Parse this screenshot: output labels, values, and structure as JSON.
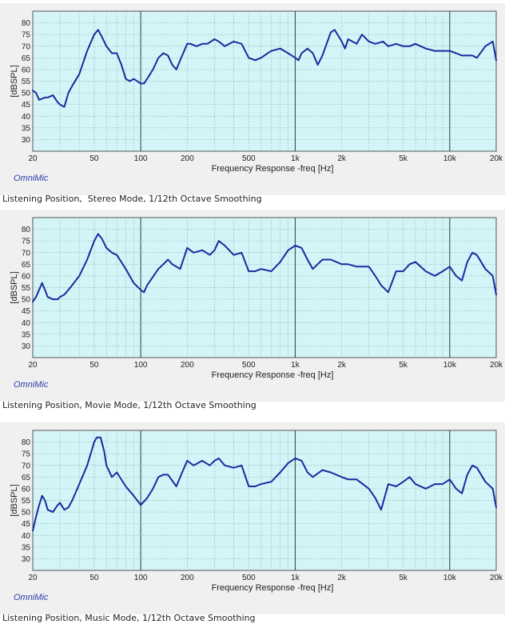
{
  "brand": "OmniMic",
  "colors": {
    "plot_bg": "#d4f5f7",
    "grid": "#7a9a9a",
    "curve": "#1a2aa0",
    "panel_bg": "#f0f0f0"
  },
  "chart_data": [
    {
      "type": "line",
      "caption": "Listening Position,  Stereo Mode, 1/12th Octave Smoothing",
      "xlabel": "Frequency Response -freq [Hz]",
      "ylabel": "[dBSPL]",
      "xscale": "log",
      "xlim": [
        20,
        20000
      ],
      "ylim": [
        25,
        85
      ],
      "x_ticks": [
        "20",
        "50",
        "100",
        "200",
        "500",
        "1k",
        "2k",
        "5k",
        "10k",
        "20k"
      ],
      "y_ticks": [
        "30",
        "35",
        "40",
        "45",
        "50",
        "55",
        "60",
        "65",
        "70",
        "75",
        "80"
      ],
      "grid": true,
      "series": [
        {
          "x": [
            20,
            21,
            22,
            24,
            25,
            27,
            29,
            30,
            32,
            34,
            36,
            40,
            45,
            50,
            53,
            56,
            60,
            65,
            70,
            75,
            80,
            85,
            90,
            100,
            105,
            110,
            120,
            130,
            140,
            150,
            160,
            170,
            180,
            200,
            210,
            230,
            250,
            270,
            300,
            320,
            350,
            400,
            450,
            500,
            550,
            600,
            700,
            800,
            900,
            1000,
            1050,
            1100,
            1200,
            1300,
            1400,
            1500,
            1700,
            1800,
            2000,
            2100,
            2200,
            2500,
            2700,
            3000,
            3300,
            3700,
            4000,
            4500,
            5000,
            5500,
            6000,
            7000,
            8000,
            9000,
            10000,
            11000,
            12000,
            13000,
            14000,
            15000,
            17000,
            19000,
            20000
          ],
          "y": [
            51,
            50,
            47,
            48,
            48,
            49,
            46,
            45,
            44,
            50,
            53,
            58,
            68,
            75,
            77,
            74,
            70,
            67,
            67,
            62,
            56,
            55,
            56,
            54,
            54,
            56,
            60,
            65,
            67,
            66,
            62,
            60,
            64,
            71,
            71,
            70,
            71,
            71,
            73,
            72,
            70,
            72,
            71,
            65,
            64,
            65,
            68,
            69,
            67,
            65,
            64,
            67,
            69,
            67,
            62,
            66,
            76,
            77,
            72,
            69,
            73,
            71,
            75,
            72,
            71,
            72,
            70,
            71,
            70,
            70,
            71,
            69,
            68,
            68,
            68,
            67,
            66,
            66,
            66,
            65,
            70,
            72,
            64
          ]
        }
      ]
    },
    {
      "type": "line",
      "caption": "Listening Position, Movie Mode, 1/12th Octave Smoothing",
      "xlabel": "Frequency Response -freq [Hz]",
      "ylabel": "[dBSPL]",
      "xscale": "log",
      "xlim": [
        20,
        20000
      ],
      "ylim": [
        25,
        85
      ],
      "x_ticks": [
        "20",
        "50",
        "100",
        "200",
        "500",
        "1k",
        "2k",
        "5k",
        "10k",
        "20k"
      ],
      "y_ticks": [
        "30",
        "35",
        "40",
        "45",
        "50",
        "55",
        "60",
        "65",
        "70",
        "75",
        "80"
      ],
      "grid": true,
      "series": [
        {
          "x": [
            20,
            21,
            23,
            24,
            25,
            27,
            29,
            30,
            32,
            35,
            40,
            45,
            50,
            53,
            56,
            60,
            65,
            70,
            80,
            90,
            100,
            105,
            110,
            130,
            140,
            150,
            160,
            180,
            200,
            220,
            250,
            280,
            300,
            320,
            350,
            400,
            450,
            500,
            550,
            600,
            700,
            800,
            900,
            1000,
            1100,
            1200,
            1300,
            1500,
            1700,
            2000,
            2200,
            2500,
            3000,
            3300,
            3600,
            4000,
            4500,
            5000,
            5500,
            6000,
            7000,
            8000,
            9000,
            10000,
            11000,
            12000,
            13000,
            14000,
            15000,
            17000,
            19000,
            20000
          ],
          "y": [
            49,
            51,
            57,
            54,
            51,
            50,
            50,
            51,
            52,
            55,
            60,
            67,
            75,
            78,
            76,
            72,
            70,
            69,
            63,
            57,
            54,
            53,
            56,
            63,
            65,
            67,
            65,
            63,
            72,
            70,
            71,
            69,
            71,
            75,
            73,
            69,
            70,
            62,
            62,
            63,
            62,
            66,
            71,
            73,
            72,
            67,
            63,
            67,
            67,
            65,
            65,
            64,
            64,
            60,
            56,
            53,
            62,
            62,
            65,
            66,
            62,
            60,
            62,
            64,
            60,
            58,
            66,
            70,
            69,
            63,
            60,
            52
          ]
        }
      ]
    },
    {
      "type": "line",
      "caption": "Listening Position, Music Mode, 1/12th Octave Smoothing",
      "xlabel": "Frequency Response -freq [Hz]",
      "ylabel": "[dBSPL]",
      "xscale": "log",
      "xlim": [
        20,
        20000
      ],
      "ylim": [
        25,
        85
      ],
      "x_ticks": [
        "20",
        "50",
        "100",
        "200",
        "500",
        "1k",
        "2k",
        "5k",
        "10k",
        "20k"
      ],
      "y_ticks": [
        "30",
        "35",
        "40",
        "45",
        "50",
        "55",
        "60",
        "65",
        "70",
        "75",
        "80"
      ],
      "grid": true,
      "series": [
        {
          "x": [
            20,
            21,
            22,
            23,
            24,
            25,
            27,
            29,
            30,
            32,
            34,
            36,
            40,
            45,
            50,
            52,
            55,
            58,
            60,
            65,
            70,
            80,
            90,
            100,
            110,
            120,
            130,
            140,
            150,
            170,
            180,
            200,
            220,
            250,
            280,
            300,
            320,
            350,
            400,
            450,
            500,
            550,
            600,
            700,
            800,
            900,
            1000,
            1100,
            1200,
            1300,
            1500,
            1700,
            2000,
            2200,
            2500,
            3000,
            3300,
            3600,
            4000,
            4500,
            5000,
            5500,
            6000,
            7000,
            8000,
            9000,
            10000,
            11000,
            12000,
            13000,
            14000,
            15000,
            17000,
            19000,
            20000
          ],
          "y": [
            42,
            48,
            53,
            57,
            55,
            51,
            50,
            53,
            54,
            51,
            52,
            55,
            62,
            70,
            80,
            82,
            82,
            76,
            70,
            65,
            67,
            61,
            57,
            53,
            56,
            60,
            65,
            66,
            66,
            61,
            65,
            72,
            70,
            72,
            70,
            72,
            73,
            70,
            69,
            70,
            61,
            61,
            62,
            63,
            67,
            71,
            73,
            72,
            67,
            65,
            68,
            67,
            65,
            64,
            64,
            60,
            56,
            51,
            62,
            61,
            63,
            65,
            62,
            60,
            62,
            62,
            64,
            60,
            58,
            66,
            70,
            69,
            63,
            60,
            52
          ]
        }
      ]
    }
  ]
}
